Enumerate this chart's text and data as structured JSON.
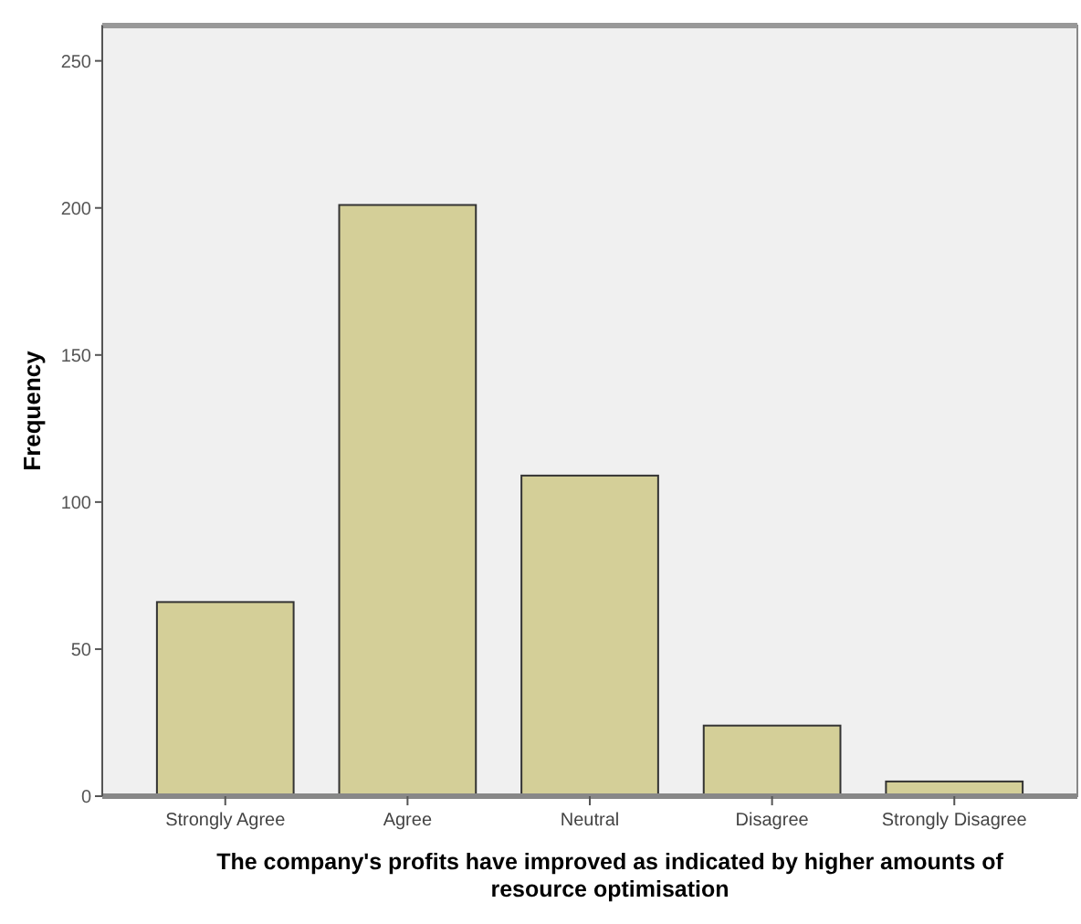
{
  "chart_data": {
    "type": "bar",
    "xlabel": "The company's profits have improved as indicated by higher amounts of resource optimisation",
    "ylabel": "Frequency",
    "categories": [
      "Strongly Agree",
      "Agree",
      "Neutral",
      "Disagree",
      "Strongly Disagree"
    ],
    "values": [
      66,
      201,
      109,
      24,
      5
    ],
    "color": "#d4cf98",
    "ylim": [
      0,
      262
    ],
    "yticks": [
      0,
      50,
      100,
      150,
      200,
      250
    ],
    "grid": false
  }
}
